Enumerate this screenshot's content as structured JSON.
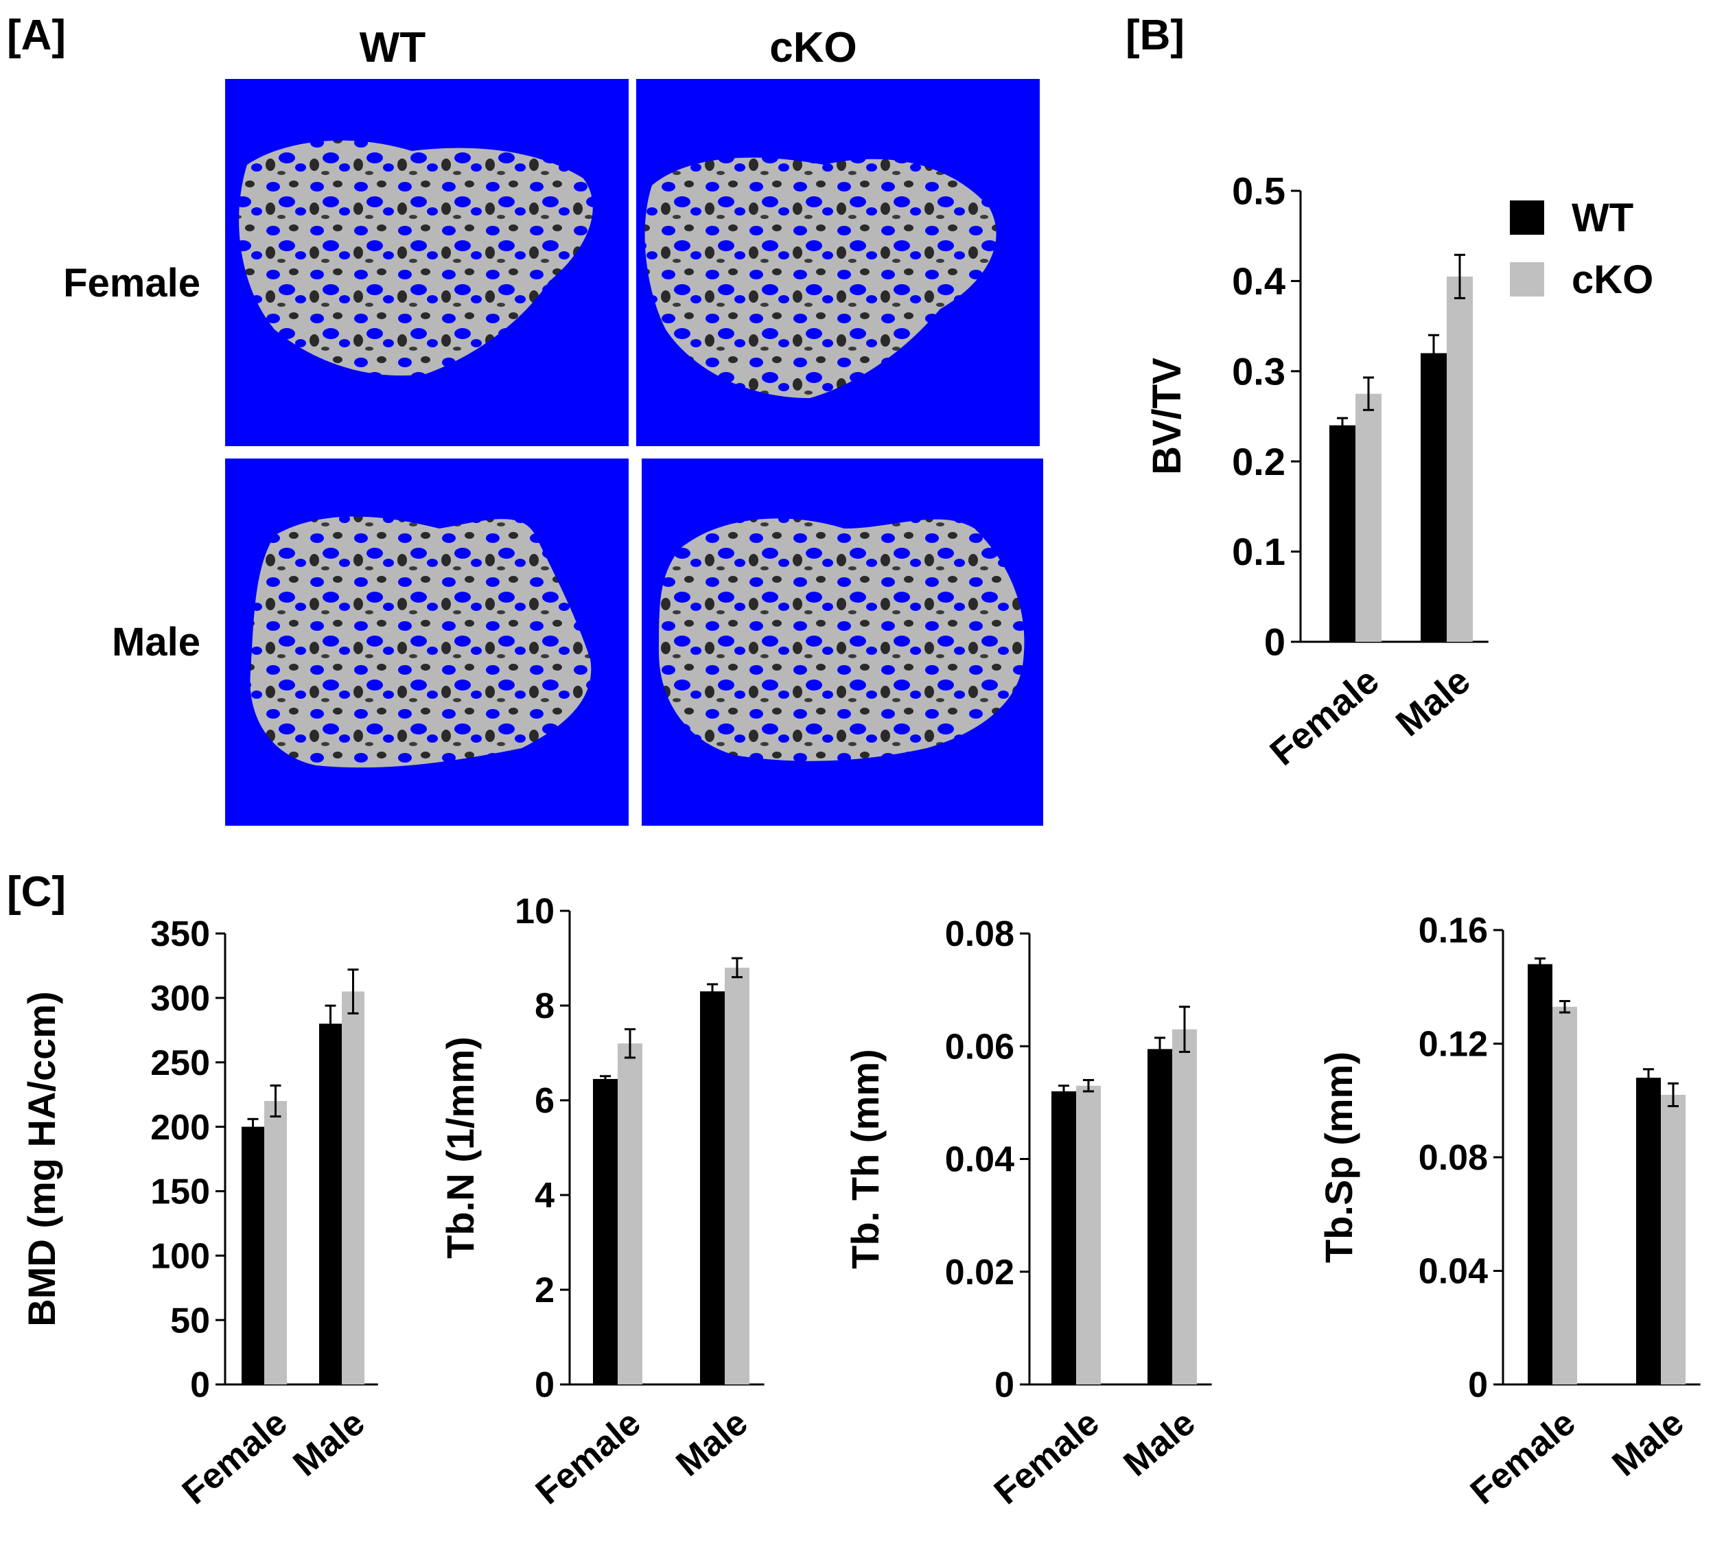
{
  "panels": {
    "a": {
      "label": "[A]",
      "columns": [
        "WT",
        "cKO"
      ],
      "rows": [
        "Female",
        "Male"
      ],
      "image_background": "#0000FF",
      "bone_color": "#B8B8B8"
    },
    "b": {
      "label": "[B]"
    },
    "c": {
      "label": "[C]"
    }
  },
  "legend": {
    "entries": [
      {
        "label": "WT",
        "color": "#000000"
      },
      {
        "label": "cKO",
        "color": "#C0C0C0"
      }
    ],
    "placement": "top-right of panel B"
  },
  "chart_data": [
    {
      "id": "bvtv",
      "type": "bar",
      "ylabel": "BV/TV",
      "categories": [
        "Female",
        "Male"
      ],
      "ylim": [
        0,
        0.5
      ],
      "yticks": [
        "0",
        "0.1",
        "0.2",
        "0.3",
        "0.4",
        "0.5"
      ],
      "series": [
        {
          "name": "WT",
          "color": "#000000",
          "values": [
            0.24,
            0.32
          ],
          "errors": [
            0.008,
            0.02
          ]
        },
        {
          "name": "cKO",
          "color": "#C0C0C0",
          "values": [
            0.275,
            0.405
          ],
          "errors": [
            0.018,
            0.024
          ]
        }
      ],
      "grid": false
    },
    {
      "id": "bmd",
      "type": "bar",
      "ylabel": "BMD (mg HA/ccm)",
      "categories": [
        "Female",
        "Male"
      ],
      "ylim": [
        0,
        350
      ],
      "yticks": [
        "0",
        "50",
        "100",
        "150",
        "200",
        "250",
        "300",
        "350"
      ],
      "series": [
        {
          "name": "WT",
          "color": "#000000",
          "values": [
            200,
            280
          ],
          "errors": [
            6,
            14
          ]
        },
        {
          "name": "cKO",
          "color": "#C0C0C0",
          "values": [
            220,
            305
          ],
          "errors": [
            12,
            17
          ]
        }
      ],
      "grid": false
    },
    {
      "id": "tbn",
      "type": "bar",
      "ylabel": "Tb.N (1/mm)",
      "categories": [
        "Female",
        "Male"
      ],
      "ylim": [
        0,
        10
      ],
      "yticks": [
        "0",
        "2",
        "4",
        "6",
        "8",
        "10"
      ],
      "series": [
        {
          "name": "WT",
          "color": "#000000",
          "values": [
            6.45,
            8.3
          ],
          "errors": [
            0.06,
            0.15
          ]
        },
        {
          "name": "cKO",
          "color": "#C0C0C0",
          "values": [
            7.2,
            8.8
          ],
          "errors": [
            0.3,
            0.2
          ]
        }
      ],
      "grid": false
    },
    {
      "id": "tbth",
      "type": "bar",
      "ylabel": "Tb. Th (mm)",
      "categories": [
        "Female",
        "Male"
      ],
      "ylim": [
        0,
        0.08
      ],
      "yticks": [
        "0",
        "0.02",
        "0.04",
        "0.06",
        "0.08"
      ],
      "series": [
        {
          "name": "WT",
          "color": "#000000",
          "values": [
            0.052,
            0.0595
          ],
          "errors": [
            0.001,
            0.002
          ]
        },
        {
          "name": "cKO",
          "color": "#C0C0C0",
          "values": [
            0.053,
            0.063
          ],
          "errors": [
            0.001,
            0.004
          ]
        }
      ],
      "grid": false
    },
    {
      "id": "tbsp",
      "type": "bar",
      "ylabel": "Tb.Sp (mm)",
      "categories": [
        "Female",
        "Male"
      ],
      "ylim": [
        0,
        0.16
      ],
      "yticks": [
        "0",
        "0.04",
        "0.08",
        "0.12",
        "0.16"
      ],
      "series": [
        {
          "name": "WT",
          "color": "#000000",
          "values": [
            0.148,
            0.108
          ],
          "errors": [
            0.002,
            0.003
          ]
        },
        {
          "name": "cKO",
          "color": "#C0C0C0",
          "values": [
            0.133,
            0.102
          ],
          "errors": [
            0.002,
            0.004
          ]
        }
      ],
      "grid": false
    }
  ]
}
